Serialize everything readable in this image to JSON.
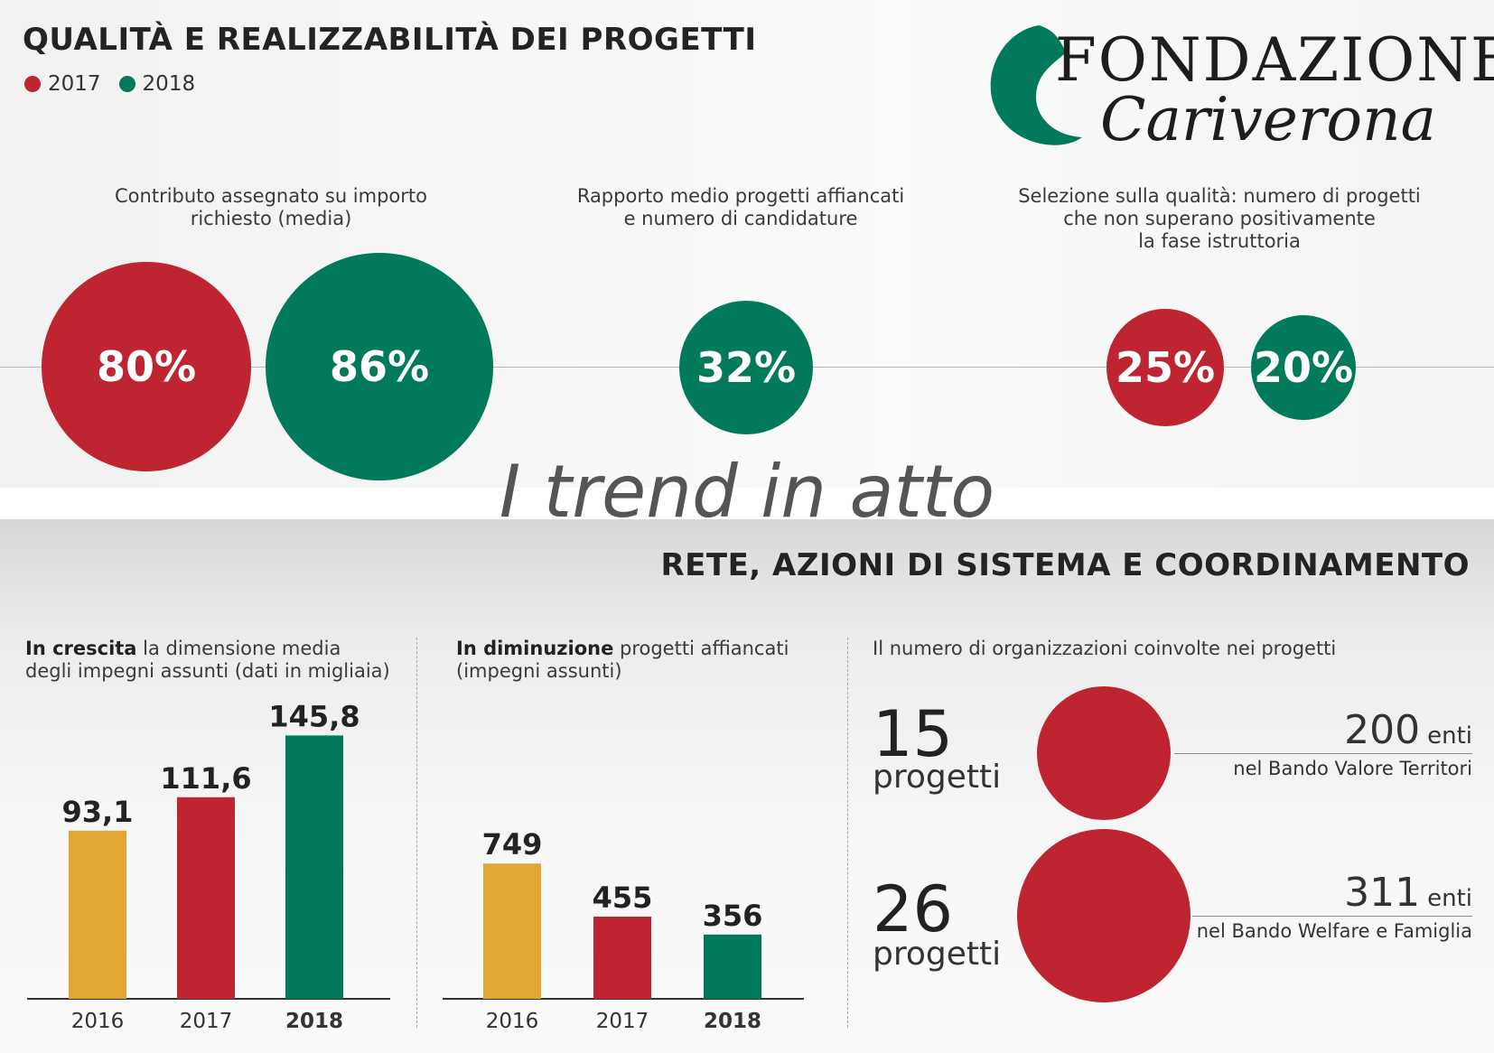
{
  "colors": {
    "y2016": "#e2a635",
    "y2017": "#be2530",
    "y2018": "#007a5a",
    "text_dark": "#232323"
  },
  "main_title": "QUALITÀ E REALIZZABILITÀ DEI PROGETTI",
  "legend": [
    {
      "label": "2017",
      "color": "#be2530"
    },
    {
      "label": "2018",
      "color": "#007a5a"
    }
  ],
  "logo": {
    "line1": "FONDAZIONE",
    "line2": "Cariverona"
  },
  "metrics": [
    {
      "caption": "Contributo assegnato su importo\nrichiesto (media)",
      "values": [
        {
          "year": "2017",
          "label": "80%"
        },
        {
          "year": "2018",
          "label": "86%"
        }
      ]
    },
    {
      "caption": "Rapporto medio progetti affiancati\ne numero di candidature",
      "values": [
        {
          "year": "2018",
          "label": "32%"
        }
      ]
    },
    {
      "caption": "Selezione sulla qualità: numero di progetti\nche non superano positivamente\nla fase istruttoria",
      "values": [
        {
          "year": "2017",
          "label": "25%"
        },
        {
          "year": "2018",
          "label": "20%"
        }
      ]
    }
  ],
  "watermark": "I trend in atto",
  "section2_title": "RETE, AZIONI DI SISTEMA E COORDINAMENTO",
  "growth": {
    "caption_bold": "In crescita",
    "caption_line1": " la dimensione media",
    "caption_line2": "degli impegni assunti (dati in migliaia)"
  },
  "decline": {
    "caption_bold": "In diminuzione",
    "caption_line1": " progetti affiancati",
    "caption_line2": "(impegni assunti)"
  },
  "orgs": {
    "caption": "Il numero di organizzazioni coinvolte nei progetti",
    "rows": [
      {
        "count": "15",
        "unit": "progetti",
        "enti_value": "200",
        "enti_unit": "enti",
        "bando": "nel Bando Valore Territori"
      },
      {
        "count": "26",
        "unit": "progetti",
        "enti_value": "311",
        "enti_unit": "enti",
        "bando": "nel Bando Welfare e Famiglia"
      }
    ]
  },
  "chart_data": [
    {
      "type": "bubble",
      "title": "QUALITÀ E REALIZZABILITÀ DEI PROGETTI",
      "series": [
        {
          "name": "2017",
          "values": {
            "Contributo assegnato su importo richiesto (media)": 80,
            "Selezione sulla qualità: numero di progetti che non superano positivamente la fase istruttoria": 25
          }
        },
        {
          "name": "2018",
          "values": {
            "Contributo assegnato su importo richiesto (media)": 86,
            "Rapporto medio progetti affiancati e numero di candidature": 32,
            "Selezione sulla qualità: numero di progetti che non superano positivamente la fase istruttoria": 20
          }
        }
      ],
      "unit": "%"
    },
    {
      "type": "bar",
      "title": "In crescita la dimensione media degli impegni assunti (dati in migliaia)",
      "categories": [
        "2016",
        "2017",
        "2018"
      ],
      "values": [
        93.1,
        111.6,
        145.8
      ],
      "labels": [
        "93,1",
        "111,6",
        "145,8"
      ],
      "bar_colors": [
        "#e2a635",
        "#be2530",
        "#007a5a"
      ],
      "bold_category": "2018"
    },
    {
      "type": "bar",
      "title": "In diminuzione progetti affiancati (impegni assunti)",
      "categories": [
        "2016",
        "2017",
        "2018"
      ],
      "values": [
        749,
        455,
        356
      ],
      "labels": [
        "749",
        "455",
        "356"
      ],
      "bar_colors": [
        "#e2a635",
        "#be2530",
        "#007a5a"
      ],
      "bold_category": "2018"
    },
    {
      "type": "bubble",
      "title": "Il numero di organizzazioni coinvolte nei progetti",
      "categories": [
        "Bando Valore Territori",
        "Bando Welfare e Famiglia"
      ],
      "series": [
        {
          "name": "progetti",
          "values": [
            15,
            26
          ]
        },
        {
          "name": "enti",
          "values": [
            200,
            311
          ]
        }
      ]
    }
  ]
}
